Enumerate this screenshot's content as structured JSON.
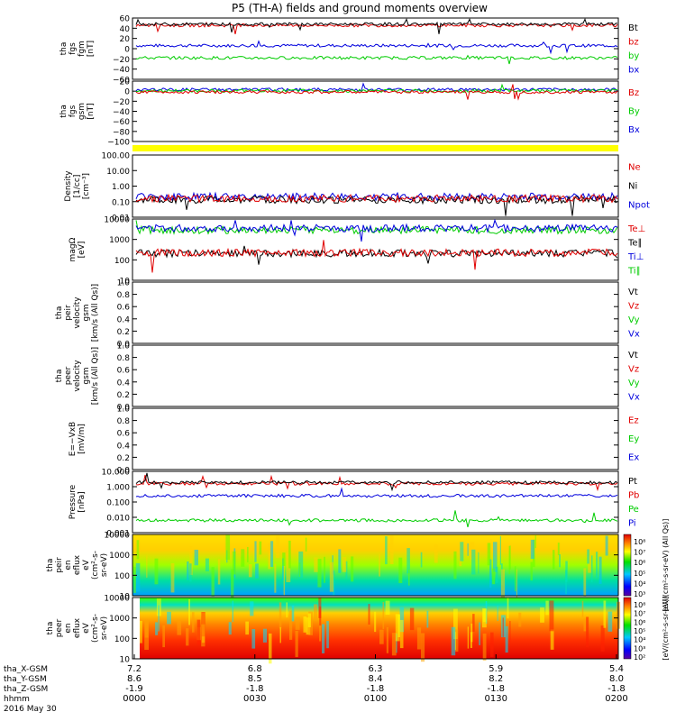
{
  "title": "P5 (TH-A) fields and ground moments overview",
  "colors": {
    "black": "#000000",
    "red": "#e00000",
    "green": "#00cc00",
    "blue": "#0000dd",
    "yellow": "#ffff00"
  },
  "chart_data": {
    "type": "line",
    "time_axis": {
      "hhmm_ticks": [
        "0000",
        "0030",
        "0100",
        "0130",
        "0200"
      ],
      "date_label": "2016 May 30",
      "row_labels": [
        "tha_X-GSM",
        "tha_Y-GSM",
        "tha_Z-GSM",
        "hhmm"
      ],
      "rows": [
        [
          "7.2",
          "6.8",
          "6.3",
          "5.9",
          "5.4"
        ],
        [
          "8.6",
          "8.5",
          "8.4",
          "8.2",
          "8.0"
        ],
        [
          "-1.9",
          "-1.8",
          "-1.8",
          "-1.8",
          "-1.8"
        ]
      ]
    },
    "panels": [
      {
        "id": "fgs-fgm",
        "ylabel": [
          "tha",
          "fgs",
          "fgm",
          "[nT]"
        ],
        "yticks": [
          "60",
          "40",
          "20",
          "0",
          "−20",
          "−40",
          "−60"
        ],
        "ylim": [
          -60,
          60
        ],
        "series": [
          {
            "name": "Bt",
            "color": "black",
            "base": 52
          },
          {
            "name": "bz",
            "color": "red",
            "base": 50
          },
          {
            "name": "by",
            "color": "green",
            "base": -20
          },
          {
            "name": "bx",
            "color": "blue",
            "base": 5
          }
        ]
      },
      {
        "id": "fgs-gsm",
        "ylabel": [
          "tha",
          "fgs",
          "gsm",
          "[nT]"
        ],
        "yticks": [
          "20",
          "0",
          "−20",
          "−40",
          "−60",
          "−80",
          "−100"
        ],
        "ylim": [
          -100,
          20
        ],
        "series": [
          {
            "name": "Bz",
            "color": "red",
            "base": 0
          },
          {
            "name": "By",
            "color": "green",
            "base": 2
          },
          {
            "name": "Bx",
            "color": "blue",
            "base": 5
          }
        ]
      },
      {
        "id": "density",
        "ylabel": [
          "Density",
          "[1/cc]",
          "[cm⁻³]"
        ],
        "yticks": [
          "100.00",
          "10.00",
          "1.00",
          "0.10",
          "0.01"
        ],
        "ylim": [
          0.01,
          100
        ],
        "log": true,
        "series": [
          {
            "name": "Ne",
            "color": "red"
          },
          {
            "name": "Ni",
            "color": "black"
          },
          {
            "name": "Npot",
            "color": "blue"
          }
        ]
      },
      {
        "id": "temperature",
        "ylabel": [
          "magΩ",
          "[eV]"
        ],
        "yticks": [
          "10000",
          "1000",
          "100",
          "10"
        ],
        "ylim": [
          10,
          10000
        ],
        "log": true,
        "series": [
          {
            "name": "Te⊥",
            "color": "red"
          },
          {
            "name": "Te∥",
            "color": "black"
          },
          {
            "name": "Ti⊥",
            "color": "blue"
          },
          {
            "name": "Ti∥",
            "color": "green"
          }
        ]
      },
      {
        "id": "peir-vel",
        "ylabel": [
          "tha",
          "peir",
          "velocity",
          "gsm",
          "[km/s (All Qs)]"
        ],
        "yticks": [
          "1.0",
          "0.8",
          "0.6",
          "0.4",
          "0.2",
          "0.0"
        ],
        "ylim": [
          0,
          1
        ],
        "series": [
          {
            "name": "Vt",
            "color": "black"
          },
          {
            "name": "Vz",
            "color": "red"
          },
          {
            "name": "Vy",
            "color": "green"
          },
          {
            "name": "Vx",
            "color": "blue"
          }
        ]
      },
      {
        "id": "peer-vel",
        "ylabel": [
          "tha",
          "peer",
          "velocity",
          "gsm",
          "[km/s (All Qs)]"
        ],
        "yticks": [
          "1.0",
          "0.8",
          "0.6",
          "0.4",
          "0.2",
          "0.0"
        ],
        "ylim": [
          0,
          1
        ],
        "series": [
          {
            "name": "Vt",
            "color": "black"
          },
          {
            "name": "Vz",
            "color": "red"
          },
          {
            "name": "Vy",
            "color": "green"
          },
          {
            "name": "Vx",
            "color": "blue"
          }
        ]
      },
      {
        "id": "efield",
        "ylabel": [
          "E=−VxB",
          "[mV/m]"
        ],
        "yticks": [
          "1.0",
          "0.8",
          "0.6",
          "0.4",
          "0.2",
          "0.0"
        ],
        "ylim": [
          0,
          1
        ],
        "series": [
          {
            "name": "Ez",
            "color": "red"
          },
          {
            "name": "Ey",
            "color": "green"
          },
          {
            "name": "Ex",
            "color": "blue"
          }
        ]
      },
      {
        "id": "pressure",
        "ylabel": [
          "Pressure",
          "[nPa]"
        ],
        "yticks": [
          "10.000",
          "1.000",
          "0.100",
          "0.010",
          "0.001"
        ],
        "ylim": [
          0.001,
          10
        ],
        "log": true,
        "series": [
          {
            "name": "Pt",
            "color": "black"
          },
          {
            "name": "Pb",
            "color": "red"
          },
          {
            "name": "Pe",
            "color": "green"
          },
          {
            "name": "Pi",
            "color": "blue"
          }
        ]
      },
      {
        "id": "peir-spec",
        "type": "heatmap",
        "ylabel": [
          "tha",
          "peir",
          "en",
          "eflux",
          "eV",
          "(cm²-s-",
          "sr-eV)"
        ],
        "yticks": [
          "10000",
          "1000",
          "100",
          "10"
        ],
        "ylim": [
          10,
          10000
        ],
        "colorbar": {
          "ticks": [
            "10⁸",
            "10⁷",
            "10⁶",
            "10⁵",
            "10⁴",
            "10³"
          ],
          "label": "[eV/(cm²-s-sr-eV) (All Qs)]"
        }
      },
      {
        "id": "peer-spec",
        "type": "heatmap",
        "ylabel": [
          "tha",
          "peer",
          "en",
          "eflux",
          "eV",
          "(cm²-s-",
          "sr-eV)"
        ],
        "yticks": [
          "10000",
          "1000",
          "100",
          "10"
        ],
        "ylim": [
          10,
          10000
        ],
        "colorbar": {
          "ticks": [
            "10⁸",
            "10⁷",
            "10⁶",
            "10⁵",
            "10⁴",
            "10³",
            "10²"
          ],
          "label": "[eV/(cm²-s-sr-eV)]"
        }
      }
    ]
  }
}
